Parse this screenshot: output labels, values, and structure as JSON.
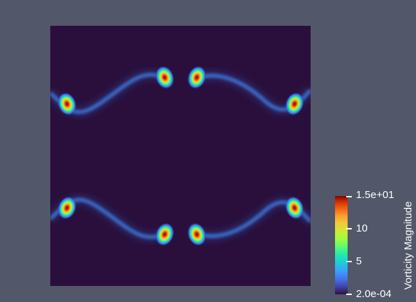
{
  "colorbar": {
    "title": "Vorticity Magnitude",
    "max_label": "1.5e+01",
    "mid_labels": [
      "10",
      "5"
    ],
    "min_label": "2.0e-04",
    "colormap": "turbo",
    "range": [
      0.0002,
      15
    ]
  },
  "colors": {
    "background": "#525769",
    "field_background": "#2a0f3c"
  }
}
